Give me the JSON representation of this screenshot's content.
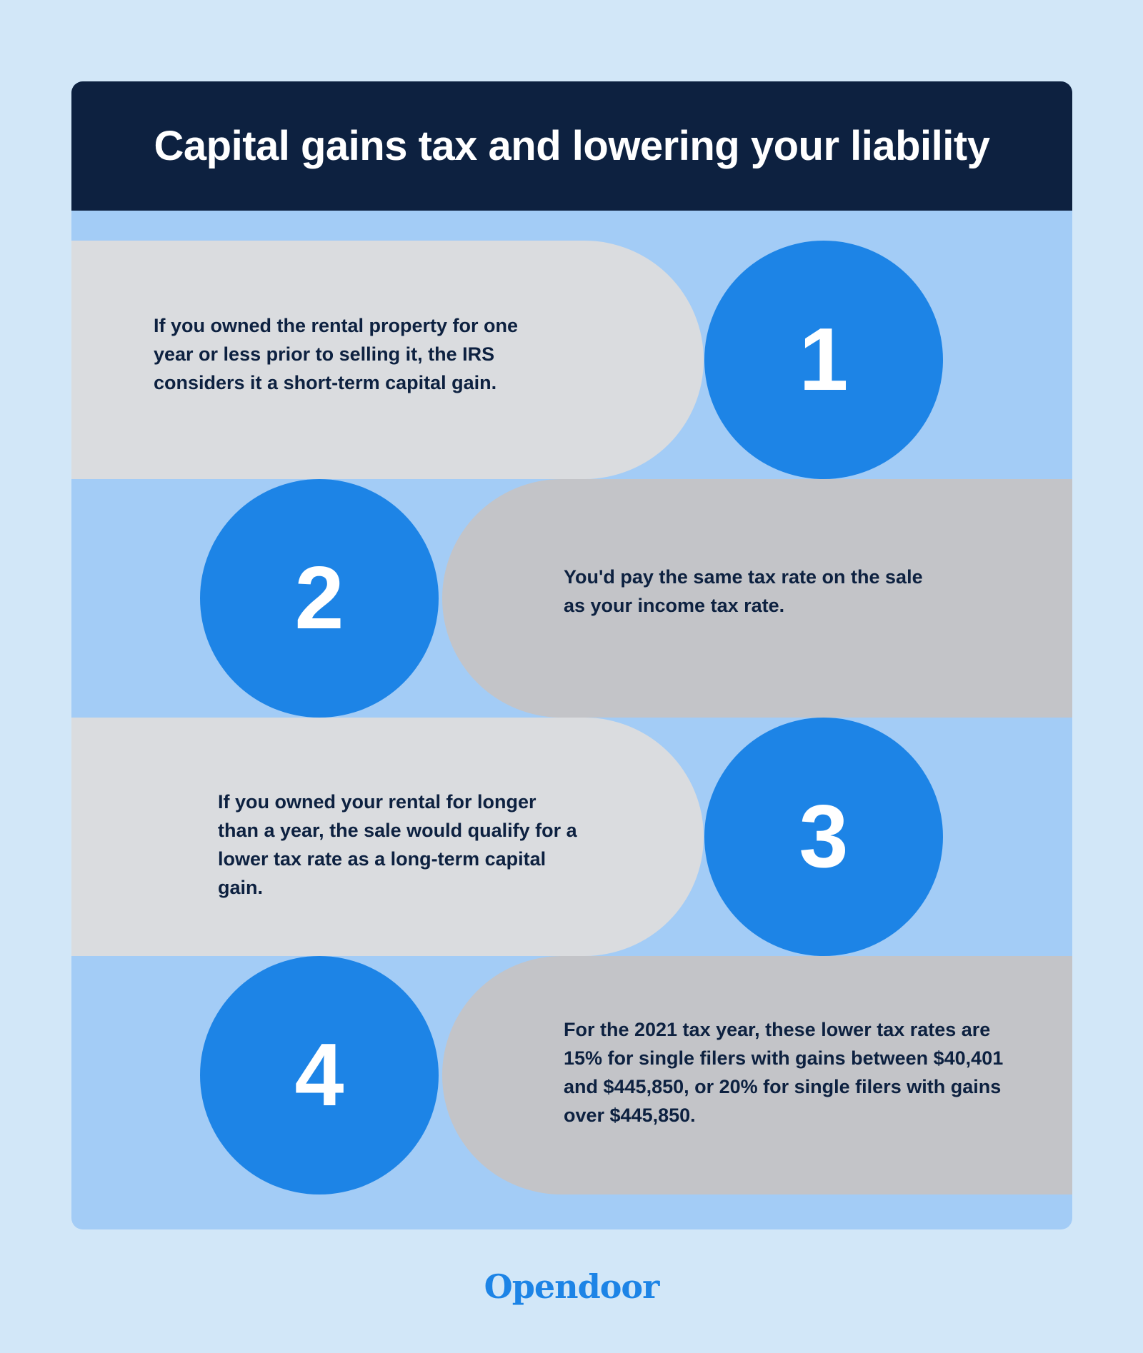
{
  "title": "Capital gains tax and lowering your liability",
  "steps": [
    {
      "number": "1",
      "text": "If you owned the rental property for one year or less prior to selling it, the IRS considers it a short-term capital gain."
    },
    {
      "number": "2",
      "text": "You'd pay the same tax rate on the sale as your income tax rate."
    },
    {
      "number": "3",
      "text": "If you owned your rental for longer than a year, the sale would qualify for a lower tax rate as a long-term capital gain."
    },
    {
      "number": "4",
      "text": "For the 2021 tax year, these lower tax rates are 15% for single filers with gains between $40,401 and $445,850, or 20% for single filers with gains over $445,850."
    }
  ],
  "brand": "Opendoor",
  "colors": {
    "background": "#d2e7f8",
    "header": "#0d2140",
    "accent": "#1d84e6",
    "panel": "#a3ccf6"
  }
}
